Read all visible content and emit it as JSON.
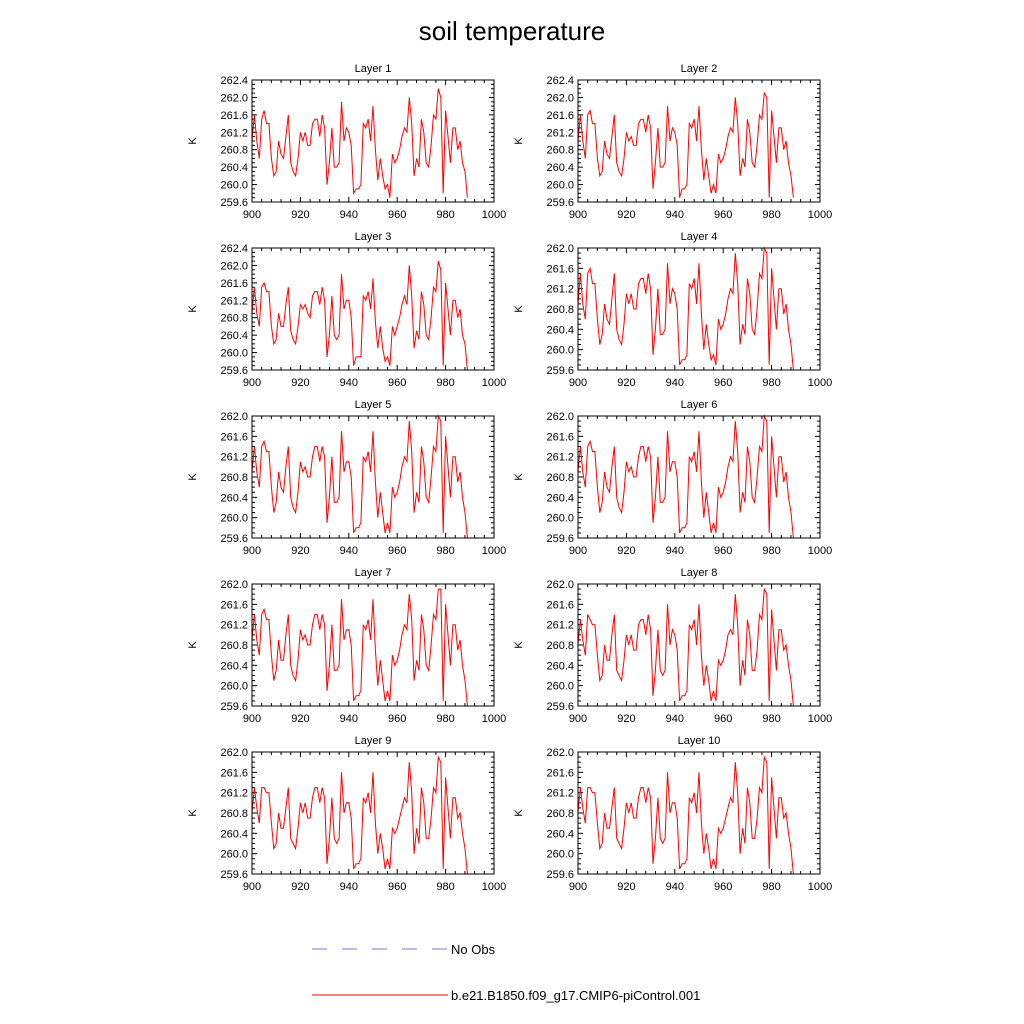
{
  "title": "soil temperature",
  "series_color": "#ff0000",
  "obs_color": "#7b7bd6",
  "legend": {
    "obs_label": "No Obs",
    "model_label": "b.e21.B1850.f09_g17.CMIP6-piControl.001"
  },
  "chart_data": [
    {
      "type": "line",
      "title": "Layer 1",
      "xlabel": "",
      "ylabel": "K",
      "xlim": [
        900,
        1000
      ],
      "ylim": [
        259.6,
        262.4
      ],
      "xticks": [
        "900",
        "920",
        "940",
        "960",
        "980",
        "1000"
      ],
      "yticks": [
        "259.6",
        "260.0",
        "260.4",
        "260.8",
        "261.2",
        "261.6",
        "262.0",
        "262.4"
      ],
      "x_start": 900,
      "x_step": 1,
      "values": [
        261.0,
        261.6,
        261.0,
        260.6,
        261.5,
        261.7,
        261.4,
        261.4,
        260.6,
        260.2,
        260.3,
        261.0,
        260.7,
        260.6,
        261.1,
        261.6,
        260.5,
        260.3,
        260.2,
        260.6,
        261.2,
        261.0,
        261.2,
        260.9,
        260.9,
        261.4,
        261.5,
        261.5,
        261.1,
        261.6,
        261.3,
        260.0,
        260.5,
        261.3,
        260.4,
        260.4,
        260.5,
        261.9,
        261.0,
        261.3,
        261.2,
        260.9,
        259.8,
        259.9,
        259.9,
        260.0,
        261.4,
        261.3,
        261.5,
        261.0,
        261.8,
        260.8,
        260.1,
        260.6,
        260.2,
        259.9,
        260.0,
        259.7,
        260.7,
        260.5,
        260.6,
        260.8,
        261.1,
        261.3,
        261.2,
        262.0,
        261.4,
        260.2,
        260.6,
        260.4,
        261.5,
        261.2,
        260.5,
        260.4,
        260.9,
        261.6,
        261.5,
        262.2,
        262.0,
        259.8,
        261.7,
        261.1,
        260.5,
        261.3,
        261.3,
        260.8,
        261.0,
        260.5,
        260.3,
        259.7
      ]
    },
    {
      "type": "line",
      "title": "Layer 2",
      "xlabel": "",
      "ylabel": "K",
      "xlim": [
        900,
        1000
      ],
      "ylim": [
        259.6,
        262.4
      ],
      "xticks": [
        "900",
        "920",
        "940",
        "960",
        "980",
        "1000"
      ],
      "yticks": [
        "259.6",
        "260.0",
        "260.4",
        "260.8",
        "261.2",
        "261.6",
        "262.0",
        "262.4"
      ],
      "x_start": 900,
      "x_step": 1,
      "values": [
        261.0,
        261.6,
        261.0,
        260.6,
        261.6,
        261.7,
        261.4,
        261.4,
        260.6,
        260.2,
        260.3,
        261.0,
        260.7,
        260.6,
        261.1,
        261.6,
        260.5,
        260.3,
        260.2,
        260.6,
        261.2,
        261.0,
        261.1,
        260.9,
        260.9,
        261.4,
        261.5,
        261.5,
        261.2,
        261.6,
        261.3,
        259.9,
        260.5,
        261.3,
        260.4,
        260.4,
        260.5,
        261.8,
        261.0,
        261.3,
        261.2,
        260.9,
        259.7,
        259.9,
        259.9,
        260.0,
        261.4,
        261.3,
        261.5,
        261.0,
        261.8,
        260.8,
        260.1,
        260.6,
        260.2,
        259.8,
        260.0,
        259.8,
        260.7,
        260.5,
        260.6,
        260.8,
        261.1,
        261.3,
        261.2,
        262.0,
        261.4,
        260.2,
        260.6,
        260.4,
        261.5,
        261.2,
        260.5,
        260.4,
        260.9,
        261.6,
        261.5,
        262.1,
        262.0,
        259.7,
        261.7,
        261.1,
        260.5,
        261.3,
        261.3,
        260.8,
        261.0,
        260.5,
        260.2,
        259.7
      ]
    },
    {
      "type": "line",
      "title": "Layer 3",
      "xlabel": "",
      "ylabel": "K",
      "xlim": [
        900,
        1000
      ],
      "ylim": [
        259.6,
        262.4
      ],
      "xticks": [
        "900",
        "920",
        "940",
        "960",
        "980",
        "1000"
      ],
      "yticks": [
        "259.6",
        "260.0",
        "260.4",
        "260.8",
        "261.2",
        "261.6",
        "262.0",
        "262.4"
      ],
      "x_start": 900,
      "x_step": 1,
      "values": [
        260.9,
        261.5,
        260.9,
        260.6,
        261.5,
        261.6,
        261.4,
        261.4,
        260.6,
        260.2,
        260.3,
        260.9,
        260.6,
        260.6,
        261.1,
        261.5,
        260.5,
        260.3,
        260.2,
        260.6,
        261.1,
        261.0,
        261.1,
        260.9,
        260.8,
        261.3,
        261.4,
        261.4,
        261.1,
        261.5,
        261.2,
        259.9,
        260.4,
        261.3,
        260.4,
        260.3,
        260.4,
        261.8,
        261.0,
        261.2,
        261.2,
        260.8,
        259.7,
        259.9,
        259.9,
        259.9,
        261.3,
        261.2,
        261.4,
        261.0,
        261.7,
        260.7,
        260.1,
        260.6,
        260.1,
        259.8,
        259.9,
        259.7,
        260.6,
        260.4,
        260.6,
        260.8,
        261.1,
        261.3,
        261.1,
        262.0,
        261.3,
        260.1,
        260.5,
        260.3,
        261.4,
        261.1,
        260.4,
        260.3,
        260.8,
        261.5,
        261.4,
        262.1,
        261.9,
        259.7,
        261.6,
        261.0,
        260.4,
        261.2,
        261.2,
        260.8,
        261.0,
        260.4,
        260.2,
        259.6
      ]
    },
    {
      "type": "line",
      "title": "Layer 4",
      "xlabel": "",
      "ylabel": "K",
      "xlim": [
        900,
        1000
      ],
      "ylim": [
        259.6,
        262.0
      ],
      "xticks": [
        "900",
        "920",
        "940",
        "960",
        "980",
        "1000"
      ],
      "yticks": [
        "259.6",
        "260.0",
        "260.4",
        "260.8",
        "261.2",
        "261.6",
        "262.0"
      ],
      "x_start": 900,
      "x_step": 1,
      "values": [
        260.9,
        261.5,
        260.9,
        260.6,
        261.5,
        261.6,
        261.3,
        261.3,
        260.6,
        260.1,
        260.3,
        260.9,
        260.6,
        260.5,
        261.0,
        261.5,
        260.4,
        260.2,
        260.1,
        260.5,
        261.1,
        260.9,
        261.1,
        260.8,
        260.8,
        261.3,
        261.4,
        261.4,
        261.1,
        261.5,
        261.2,
        259.9,
        260.4,
        261.2,
        260.3,
        260.3,
        260.4,
        261.7,
        260.9,
        261.2,
        261.1,
        260.8,
        259.7,
        259.8,
        259.8,
        259.9,
        261.3,
        261.2,
        261.4,
        260.9,
        261.7,
        260.7,
        260.0,
        260.5,
        260.1,
        259.8,
        259.9,
        259.7,
        260.6,
        260.4,
        260.5,
        260.7,
        261.0,
        261.2,
        261.1,
        261.9,
        261.3,
        260.1,
        260.5,
        260.3,
        261.4,
        261.1,
        260.4,
        260.3,
        260.8,
        261.5,
        261.4,
        262.0,
        261.9,
        259.7,
        261.6,
        261.0,
        260.4,
        261.2,
        261.2,
        260.7,
        260.9,
        260.4,
        260.1,
        259.6
      ]
    },
    {
      "type": "line",
      "title": "Layer 5",
      "xlabel": "",
      "ylabel": "K",
      "xlim": [
        900,
        1000
      ],
      "ylim": [
        259.6,
        262.0
      ],
      "xticks": [
        "900",
        "920",
        "940",
        "960",
        "980",
        "1000"
      ],
      "yticks": [
        "259.6",
        "260.0",
        "260.4",
        "260.8",
        "261.2",
        "261.6",
        "262.0"
      ],
      "x_start": 900,
      "x_step": 1,
      "values": [
        260.9,
        261.4,
        260.9,
        260.6,
        261.4,
        261.5,
        261.3,
        261.3,
        260.6,
        260.1,
        260.3,
        260.9,
        260.6,
        260.5,
        261.0,
        261.4,
        260.4,
        260.2,
        260.1,
        260.5,
        261.1,
        260.9,
        261.0,
        260.8,
        260.8,
        261.2,
        261.4,
        261.4,
        261.1,
        261.4,
        261.2,
        259.9,
        260.4,
        261.2,
        260.3,
        260.3,
        260.4,
        261.7,
        260.9,
        261.1,
        261.1,
        260.8,
        259.7,
        259.8,
        259.8,
        259.9,
        261.2,
        261.1,
        261.3,
        260.9,
        261.7,
        260.7,
        260.0,
        260.5,
        260.1,
        259.7,
        259.9,
        259.7,
        260.6,
        260.4,
        260.5,
        260.7,
        261.0,
        261.2,
        261.1,
        261.9,
        261.3,
        260.1,
        260.5,
        260.3,
        261.4,
        261.1,
        260.4,
        260.3,
        260.8,
        261.4,
        261.3,
        262.0,
        261.9,
        259.7,
        261.6,
        261.0,
        260.4,
        261.2,
        261.2,
        260.7,
        260.9,
        260.4,
        260.1,
        259.6
      ]
    },
    {
      "type": "line",
      "title": "Layer 6",
      "xlabel": "",
      "ylabel": "K",
      "xlim": [
        900,
        1000
      ],
      "ylim": [
        259.6,
        262.0
      ],
      "xticks": [
        "900",
        "920",
        "940",
        "960",
        "980",
        "1000"
      ],
      "yticks": [
        "259.6",
        "260.0",
        "260.4",
        "260.8",
        "261.2",
        "261.6",
        "262.0"
      ],
      "x_start": 900,
      "x_step": 1,
      "values": [
        260.9,
        261.4,
        260.9,
        260.6,
        261.4,
        261.5,
        261.3,
        261.3,
        260.6,
        260.1,
        260.3,
        260.9,
        260.6,
        260.5,
        261.0,
        261.4,
        260.4,
        260.2,
        260.1,
        260.5,
        261.1,
        260.9,
        261.0,
        260.8,
        260.8,
        261.2,
        261.4,
        261.4,
        261.1,
        261.4,
        261.2,
        259.9,
        260.4,
        261.2,
        260.3,
        260.3,
        260.4,
        261.7,
        260.9,
        261.1,
        261.1,
        260.8,
        259.7,
        259.8,
        259.8,
        259.9,
        261.2,
        261.1,
        261.3,
        260.9,
        261.7,
        260.7,
        260.0,
        260.5,
        260.1,
        259.7,
        259.9,
        259.7,
        260.6,
        260.4,
        260.5,
        260.7,
        261.0,
        261.2,
        261.1,
        261.9,
        261.3,
        260.1,
        260.5,
        260.3,
        261.4,
        261.1,
        260.4,
        260.3,
        260.8,
        261.4,
        261.3,
        262.0,
        261.9,
        259.7,
        261.6,
        261.0,
        260.4,
        261.2,
        261.2,
        260.7,
        260.9,
        260.4,
        260.1,
        259.6
      ]
    },
    {
      "type": "line",
      "title": "Layer 7",
      "xlabel": "",
      "ylabel": "K",
      "xlim": [
        900,
        1000
      ],
      "ylim": [
        259.6,
        262.0
      ],
      "xticks": [
        "900",
        "920",
        "940",
        "960",
        "980",
        "1000"
      ],
      "yticks": [
        "259.6",
        "260.0",
        "260.4",
        "260.8",
        "261.2",
        "261.6",
        "262.0"
      ],
      "x_start": 900,
      "x_step": 1,
      "values": [
        260.9,
        261.4,
        260.9,
        260.6,
        261.4,
        261.5,
        261.3,
        261.3,
        260.6,
        260.1,
        260.3,
        260.9,
        260.5,
        260.5,
        261.0,
        261.4,
        260.4,
        260.2,
        260.1,
        260.5,
        261.1,
        260.9,
        261.0,
        260.8,
        260.8,
        261.2,
        261.4,
        261.4,
        261.1,
        261.4,
        261.2,
        259.9,
        260.4,
        261.2,
        260.3,
        260.3,
        260.4,
        261.7,
        260.9,
        261.1,
        261.1,
        260.8,
        259.7,
        259.8,
        259.8,
        259.9,
        261.2,
        261.1,
        261.3,
        260.9,
        261.7,
        260.7,
        260.0,
        260.5,
        260.1,
        259.7,
        259.9,
        259.7,
        260.6,
        260.4,
        260.5,
        260.7,
        261.0,
        261.2,
        261.1,
        261.8,
        261.3,
        260.1,
        260.5,
        260.3,
        261.4,
        261.1,
        260.4,
        260.3,
        260.8,
        261.4,
        261.3,
        261.9,
        261.9,
        259.7,
        261.6,
        261.0,
        260.4,
        261.2,
        261.2,
        260.7,
        260.9,
        260.4,
        260.1,
        259.6
      ]
    },
    {
      "type": "line",
      "title": "Layer 8",
      "xlabel": "",
      "ylabel": "K",
      "xlim": [
        900,
        1000
      ],
      "ylim": [
        259.6,
        262.0
      ],
      "xticks": [
        "900",
        "920",
        "940",
        "960",
        "980",
        "1000"
      ],
      "yticks": [
        "259.6",
        "260.0",
        "260.4",
        "260.8",
        "261.2",
        "261.6",
        "262.0"
      ],
      "x_start": 900,
      "x_step": 1,
      "values": [
        260.8,
        261.3,
        260.9,
        260.6,
        261.4,
        261.3,
        261.2,
        261.2,
        260.6,
        260.1,
        260.2,
        260.8,
        260.5,
        260.5,
        261.0,
        261.4,
        260.3,
        260.2,
        260.1,
        260.5,
        261.0,
        260.8,
        261.0,
        260.7,
        260.7,
        261.2,
        261.3,
        261.3,
        261.0,
        261.4,
        261.1,
        259.8,
        260.3,
        261.1,
        260.3,
        260.2,
        260.3,
        261.6,
        260.8,
        261.1,
        261.0,
        260.7,
        259.7,
        259.8,
        259.8,
        259.9,
        261.2,
        261.1,
        261.3,
        260.8,
        261.6,
        260.6,
        260.0,
        260.4,
        260.1,
        259.7,
        259.9,
        259.7,
        260.5,
        260.4,
        260.5,
        260.7,
        261.0,
        261.1,
        261.0,
        261.8,
        261.2,
        260.0,
        260.5,
        260.2,
        261.3,
        261.0,
        260.3,
        260.3,
        260.7,
        261.4,
        261.3,
        261.9,
        261.8,
        259.7,
        261.5,
        260.9,
        260.3,
        261.1,
        261.1,
        260.7,
        260.8,
        260.4,
        260.1,
        259.6
      ]
    },
    {
      "type": "line",
      "title": "Layer 9",
      "xlabel": "",
      "ylabel": "K",
      "xlim": [
        900,
        1000
      ],
      "ylim": [
        259.6,
        262.0
      ],
      "xticks": [
        "900",
        "920",
        "940",
        "960",
        "980",
        "1000"
      ],
      "yticks": [
        "259.6",
        "260.0",
        "260.4",
        "260.8",
        "261.2",
        "261.6",
        "262.0"
      ],
      "x_start": 900,
      "x_step": 1,
      "values": [
        260.8,
        261.3,
        260.9,
        260.6,
        261.3,
        261.3,
        261.2,
        261.2,
        260.6,
        260.1,
        260.2,
        260.8,
        260.5,
        260.5,
        260.9,
        261.3,
        260.3,
        260.2,
        260.1,
        260.5,
        261.0,
        260.8,
        261.0,
        260.7,
        260.7,
        261.1,
        261.3,
        261.3,
        261.0,
        261.3,
        261.1,
        259.8,
        260.3,
        261.1,
        260.3,
        260.2,
        260.3,
        261.6,
        260.8,
        261.0,
        261.0,
        260.7,
        259.7,
        259.8,
        259.8,
        259.9,
        261.1,
        261.0,
        261.2,
        260.8,
        261.6,
        260.6,
        260.0,
        260.4,
        260.1,
        259.7,
        259.9,
        259.7,
        260.5,
        260.4,
        260.5,
        260.7,
        260.9,
        261.1,
        261.0,
        261.8,
        261.2,
        260.0,
        260.5,
        260.2,
        261.3,
        261.0,
        260.3,
        260.3,
        260.7,
        261.3,
        261.2,
        261.9,
        261.8,
        259.7,
        261.5,
        260.9,
        260.3,
        261.1,
        261.1,
        260.7,
        260.8,
        260.4,
        260.1,
        259.6
      ]
    },
    {
      "type": "line",
      "title": "Layer 10",
      "xlabel": "",
      "ylabel": "K",
      "xlim": [
        900,
        1000
      ],
      "ylim": [
        259.6,
        262.0
      ],
      "xticks": [
        "900",
        "920",
        "940",
        "960",
        "980",
        "1000"
      ],
      "yticks": [
        "259.6",
        "260.0",
        "260.4",
        "260.8",
        "261.2",
        "261.6",
        "262.0"
      ],
      "x_start": 900,
      "x_step": 1,
      "values": [
        260.8,
        261.3,
        260.9,
        260.6,
        261.3,
        261.3,
        261.2,
        261.2,
        260.6,
        260.1,
        260.2,
        260.8,
        260.5,
        260.5,
        260.9,
        261.3,
        260.3,
        260.2,
        260.1,
        260.5,
        261.0,
        260.8,
        261.0,
        260.7,
        260.7,
        261.1,
        261.3,
        261.3,
        261.0,
        261.3,
        261.1,
        259.8,
        260.3,
        261.1,
        260.3,
        260.2,
        260.3,
        261.6,
        260.8,
        261.0,
        261.0,
        260.7,
        259.7,
        259.8,
        259.8,
        259.9,
        261.1,
        261.0,
        261.2,
        260.8,
        261.6,
        260.6,
        260.0,
        260.4,
        260.1,
        259.7,
        259.9,
        259.7,
        260.5,
        260.4,
        260.5,
        260.7,
        260.9,
        261.1,
        261.0,
        261.8,
        261.2,
        260.0,
        260.5,
        260.2,
        261.3,
        261.0,
        260.3,
        260.3,
        260.7,
        261.3,
        261.2,
        261.9,
        261.8,
        259.7,
        261.5,
        260.9,
        260.3,
        261.1,
        261.1,
        260.7,
        260.8,
        260.4,
        260.1,
        259.6
      ]
    }
  ]
}
